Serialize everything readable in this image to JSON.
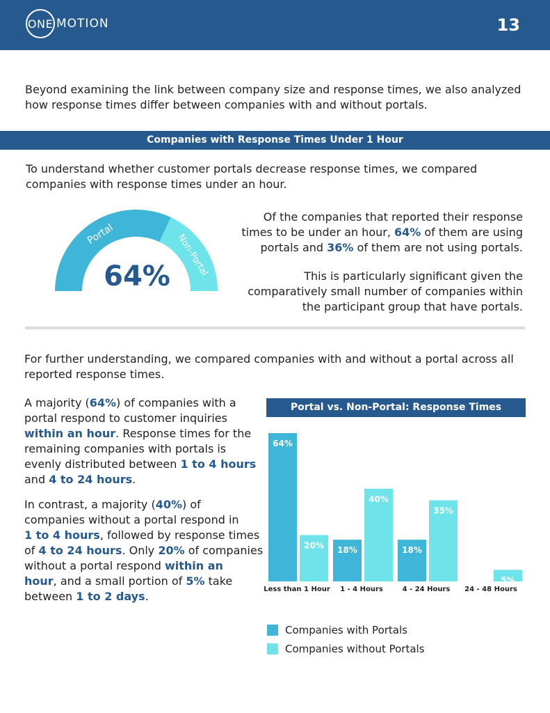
{
  "header": {
    "logo_one": "ONE",
    "logo_rest": "MOTION",
    "page_number": "13"
  },
  "intro": {
    "line1": "Beyond examining the link between company size and response times, we also analyzed",
    "line2": "how response times differ between companies with and without portals."
  },
  "section_title": "Companies with Response Times Under 1 Hour",
  "section_intro": {
    "line1": "To understand whether customer portals decrease response times, we compared",
    "line2": "companies with response times under an hour."
  },
  "gauge": {
    "value_label": "64%",
    "portal_label": "Portal",
    "nonportal_label": "Non-Portal",
    "portal_fraction": 0.64
  },
  "right_para1": {
    "line1": "Of the companies that reported their response",
    "line2_a": "times to be under an hour, ",
    "line2_b": "64%",
    "line2_c": " of them are using",
    "line3_a": "portals and ",
    "line3_b": "36%",
    "line3_c": " of them are not using portals."
  },
  "right_para2": {
    "line1": "This is particularly significant given the",
    "line2": "comparatively small number of companies within",
    "line3": "the participant group that have portals."
  },
  "further": {
    "line1": "For further understanding, we compared companies with and without a portal across all",
    "line2": "reported response times."
  },
  "left_para1": {
    "l1a": "A majority (",
    "l1b": "64%",
    "l1c": ") of companies with a",
    "l2": "portal respond to customer inquiries",
    "l3a": "within an hour",
    "l3b": ". Response times for the",
    "l4": "remaining companies with portals is",
    "l5a": "evenly distributed between ",
    "l5b": "1 to 4 hours",
    "l6a": "and ",
    "l6b": "4 to 24 hours",
    "l6c": "."
  },
  "left_para2": {
    "l1a": "In contrast, a majority (",
    "l1b": "40%",
    "l1c": ") of",
    "l2": "companies without a portal respond in",
    "l3a": "1 to 4 hours",
    "l3b": ", followed by response times",
    "l4a": "of ",
    "l4b": "4 to 24 hours",
    "l4c": ". Only ",
    "l4d": "20%",
    "l4e": " of companies",
    "l5a": "without a portal respond ",
    "l5b": "within an",
    "l6a": "hour",
    "l6b": ", and a small portion of ",
    "l6c": "5%",
    "l6d": " take",
    "l7a": "between ",
    "l7b": "1 to 2 days",
    "l7c": "."
  },
  "chart_data": {
    "type": "bar",
    "title": "Portal vs. Non-Portal: Response Times",
    "categories": [
      "Less than 1 Hour",
      "1 - 4 Hours",
      "4 - 24 Hours",
      "24 - 48 Hours"
    ],
    "series": [
      {
        "name": "Companies with Portals",
        "values": [
          64,
          18,
          18,
          0
        ],
        "labels": [
          "64%",
          "18%",
          "18%",
          ""
        ],
        "color": "#3fb5d8"
      },
      {
        "name": "Companies without Portals",
        "values": [
          20,
          40,
          35,
          5
        ],
        "labels": [
          "20%",
          "40%",
          "35%",
          "5%"
        ],
        "color": "#6ee3ea"
      }
    ],
    "ylim": [
      0,
      64
    ],
    "grid": false,
    "legend": "bottom-left"
  },
  "colors": {
    "brand": "#265a8f",
    "portal": "#3fb5d8",
    "nonportal": "#6ee3ea"
  }
}
